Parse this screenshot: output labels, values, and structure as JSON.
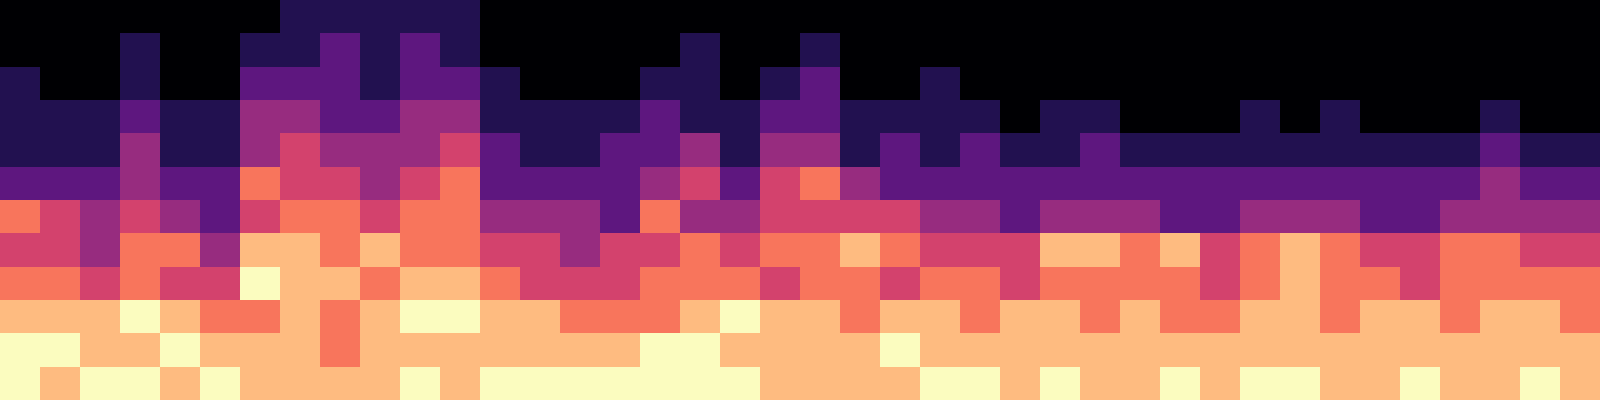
{
  "chart_data": {
    "type": "heatmap",
    "color": "magma",
    "tick_labels": false,
    "cells": [
      [
        1,
        1,
        1,
        1,
        1,
        1,
        1,
        2,
        2,
        2,
        2,
        2,
        1,
        1,
        1,
        1,
        1,
        1,
        1,
        1,
        1,
        1,
        1,
        1,
        1,
        1,
        1,
        1,
        1,
        1,
        1,
        1,
        1,
        1,
        1,
        1,
        1,
        1,
        1,
        1
      ],
      [
        1,
        1,
        1,
        2,
        1,
        1,
        2,
        2,
        3,
        2,
        3,
        2,
        1,
        1,
        1,
        1,
        1,
        2,
        1,
        1,
        2,
        1,
        1,
        1,
        1,
        1,
        1,
        1,
        1,
        1,
        1,
        1,
        1,
        1,
        1,
        1,
        1,
        1,
        1,
        1
      ],
      [
        2,
        1,
        1,
        2,
        1,
        1,
        3,
        3,
        3,
        2,
        3,
        3,
        2,
        1,
        1,
        1,
        2,
        2,
        1,
        2,
        3,
        1,
        1,
        2,
        1,
        1,
        1,
        1,
        1,
        1,
        1,
        1,
        1,
        1,
        1,
        1,
        1,
        1,
        1,
        1
      ],
      [
        2,
        2,
        2,
        3,
        2,
        2,
        4,
        4,
        3,
        3,
        4,
        4,
        2,
        2,
        2,
        2,
        3,
        2,
        2,
        3,
        3,
        2,
        2,
        2,
        2,
        1,
        2,
        2,
        1,
        1,
        1,
        2,
        1,
        2,
        1,
        1,
        1,
        2,
        1,
        1
      ],
      [
        2,
        2,
        2,
        4,
        2,
        2,
        4,
        5,
        4,
        4,
        4,
        5,
        3,
        2,
        2,
        3,
        3,
        4,
        2,
        4,
        4,
        2,
        3,
        2,
        3,
        2,
        2,
        3,
        2,
        2,
        2,
        2,
        2,
        2,
        2,
        2,
        2,
        3,
        2,
        2
      ],
      [
        3,
        3,
        3,
        4,
        3,
        3,
        6,
        5,
        5,
        4,
        5,
        6,
        3,
        3,
        3,
        3,
        4,
        5,
        3,
        5,
        6,
        4,
        3,
        3,
        3,
        3,
        3,
        3,
        3,
        3,
        3,
        3,
        3,
        3,
        3,
        3,
        3,
        4,
        3,
        3
      ],
      [
        6,
        5,
        4,
        5,
        4,
        3,
        5,
        6,
        6,
        5,
        6,
        6,
        4,
        4,
        4,
        3,
        6,
        4,
        4,
        5,
        5,
        5,
        5,
        4,
        4,
        3,
        4,
        4,
        4,
        3,
        3,
        4,
        4,
        4,
        3,
        3,
        4,
        4,
        4,
        4
      ],
      [
        5,
        5,
        4,
        6,
        6,
        4,
        7,
        7,
        6,
        7,
        6,
        6,
        5,
        5,
        4,
        5,
        5,
        6,
        5,
        6,
        6,
        7,
        6,
        5,
        5,
        5,
        7,
        7,
        6,
        7,
        5,
        6,
        7,
        6,
        5,
        5,
        6,
        6,
        5,
        5
      ],
      [
        6,
        6,
        5,
        6,
        5,
        5,
        8,
        7,
        7,
        6,
        7,
        7,
        6,
        5,
        5,
        5,
        6,
        6,
        6,
        5,
        6,
        6,
        5,
        6,
        6,
        5,
        6,
        6,
        6,
        6,
        5,
        6,
        7,
        6,
        6,
        5,
        6,
        6,
        6,
        6
      ],
      [
        7,
        7,
        7,
        8,
        7,
        6,
        6,
        7,
        6,
        7,
        8,
        8,
        7,
        7,
        6,
        6,
        6,
        7,
        8,
        7,
        7,
        6,
        7,
        7,
        6,
        7,
        7,
        6,
        7,
        6,
        6,
        7,
        7,
        6,
        7,
        7,
        6,
        7,
        7,
        6
      ],
      [
        8,
        8,
        7,
        7,
        8,
        7,
        7,
        7,
        6,
        7,
        7,
        7,
        7,
        7,
        7,
        7,
        8,
        8,
        7,
        7,
        7,
        7,
        8,
        7,
        7,
        7,
        7,
        7,
        7,
        7,
        7,
        7,
        7,
        7,
        7,
        7,
        7,
        7,
        7,
        7
      ],
      [
        8,
        7,
        8,
        8,
        7,
        8,
        7,
        7,
        7,
        7,
        8,
        7,
        8,
        8,
        8,
        8,
        8,
        8,
        8,
        7,
        7,
        7,
        7,
        8,
        8,
        7,
        8,
        7,
        7,
        8,
        7,
        8,
        8,
        7,
        7,
        8,
        7,
        7,
        8,
        7
      ]
    ]
  }
}
